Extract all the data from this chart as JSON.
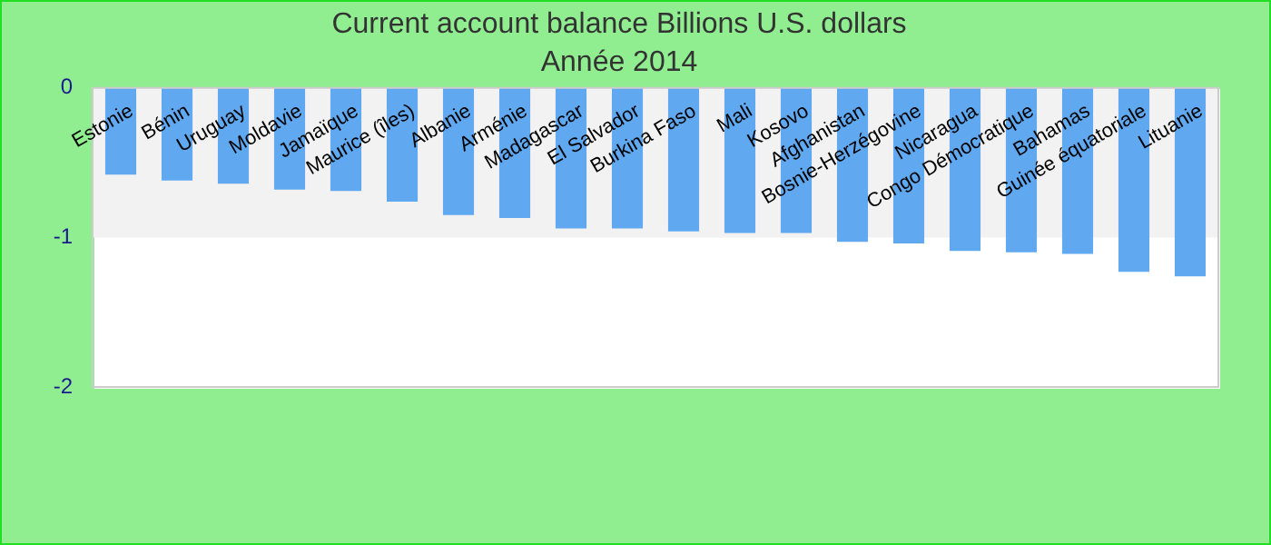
{
  "chart_data": {
    "type": "bar",
    "title": "Current account balance Billions U.S. dollars",
    "subtitle": "Année 2014",
    "categories": [
      "Estonie",
      "Bénin",
      "Uruguay",
      "Moldavie",
      "Jamaïque",
      "Maurice (îles)",
      "Albanie",
      "Arménie",
      "Madagascar",
      "El Salvador",
      "Burkina Faso",
      "Mali",
      "Kosovo",
      "Afghanistan",
      "Bosnie-Herzégovine",
      "Nicaragua",
      "Congo Démocratique",
      "Bahamas",
      "Guinée équatoriale",
      "Lituanie"
    ],
    "values": [
      -0.58,
      -0.62,
      -0.64,
      -0.68,
      -0.69,
      -0.76,
      -0.85,
      -0.87,
      -0.94,
      -0.94,
      -0.96,
      -0.97,
      -0.97,
      -1.03,
      -1.04,
      -1.09,
      -1.1,
      -1.11,
      -1.23,
      -1.26
    ],
    "color": "#60a8f0",
    "ylim": [
      -2,
      0
    ],
    "yticks": [
      -2,
      -1,
      0
    ],
    "bands": [
      {
        "axis": "y",
        "from": -1,
        "to": 0,
        "color": "#f2f2f2"
      }
    ],
    "legend": false
  }
}
